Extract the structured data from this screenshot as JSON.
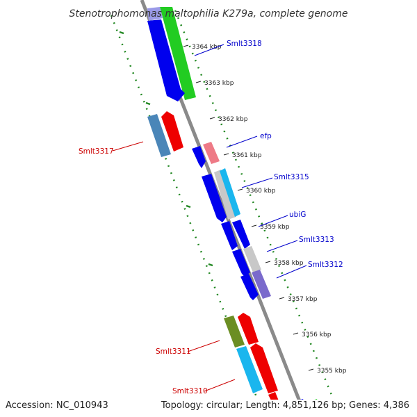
{
  "title": "Stenotrophomonas maltophilia K279a, complete genome",
  "footer": {
    "accession": "Accession: NC_010943",
    "summary": "Topology: circular; Length: 4,851,126 bp; Genes: 4,386"
  },
  "ticks": [
    "3364 kbp",
    "3363 kbp",
    "3362 kbp",
    "3361 kbp",
    "3360 kbp",
    "3359 kbp",
    "3358 kbp",
    "3357 kbp",
    "3356 kbp",
    "3355 kbp"
  ],
  "labels": [
    {
      "text": "Smlt3318",
      "color": "#0000cc"
    },
    {
      "text": "efp",
      "color": "#0000cc"
    },
    {
      "text": "Smlt3315",
      "color": "#0000cc"
    },
    {
      "text": "ubiG",
      "color": "#0000cc"
    },
    {
      "text": "Smlt3313",
      "color": "#0000cc"
    },
    {
      "text": "Smlt3312",
      "color": "#0000cc"
    },
    {
      "text": "Smlt3317",
      "color": "#cc0000"
    },
    {
      "text": "Smlt3311",
      "color": "#cc0000"
    },
    {
      "text": "Smlt3310",
      "color": "#cc0000"
    }
  ],
  "colors": {
    "backbone": "#8a8a8a",
    "cds_forward": "#0000ee",
    "cds_reverse": "#ee0000",
    "gc_skew": "#22bb22",
    "tick_dots": "#228822",
    "cog_blue": "#4a86b8",
    "cog_pink": "#ee7a86",
    "cog_cyan": "#1ab6ee",
    "cog_grey": "#c8c8c8",
    "cog_purple": "#7a6acc",
    "cog_olive": "#6b8e23"
  }
}
